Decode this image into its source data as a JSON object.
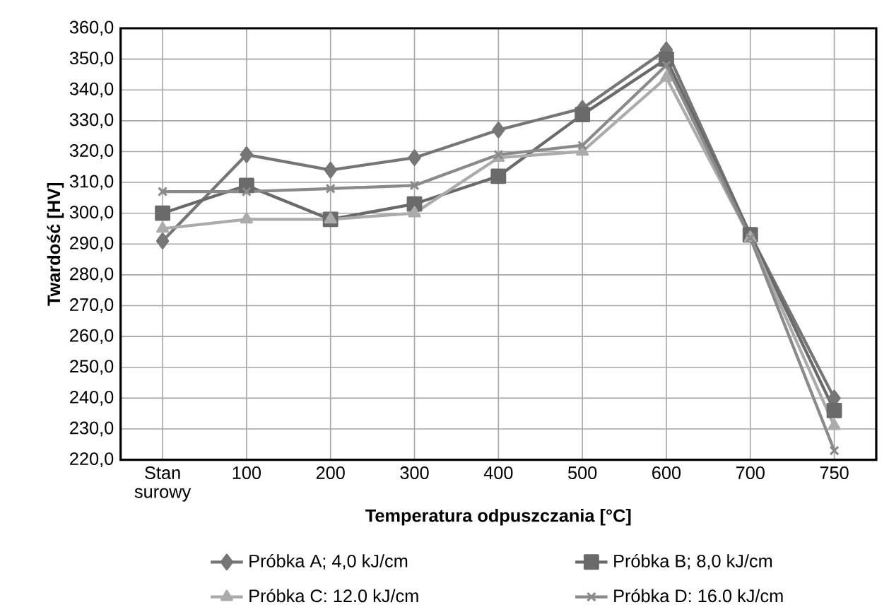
{
  "chart_data": {
    "type": "line",
    "xlabel": "Temperatura odpuszczania [°C]",
    "ylabel": "Twardość [HV]",
    "categories": [
      "Stan surowy",
      "100",
      "200",
      "300",
      "400",
      "500",
      "600",
      "700",
      "750"
    ],
    "ylim": [
      220,
      360
    ],
    "yticks": [
      {
        "value": 220,
        "label": "220,0"
      },
      {
        "value": 230,
        "label": "230,0"
      },
      {
        "value": 240,
        "label": "240,0"
      },
      {
        "value": 250,
        "label": "250,0"
      },
      {
        "value": 260,
        "label": "260,0"
      },
      {
        "value": 270,
        "label": "270,0"
      },
      {
        "value": 280,
        "label": "280,0"
      },
      {
        "value": 290,
        "label": "290,0"
      },
      {
        "value": 300,
        "label": "300,0"
      },
      {
        "value": 310,
        "label": "310,0"
      },
      {
        "value": 320,
        "label": "320,0"
      },
      {
        "value": 330,
        "label": "330,0"
      },
      {
        "value": 340,
        "label": "340,0"
      },
      {
        "value": 350,
        "label": "350,0"
      },
      {
        "value": 360,
        "label": "360,0"
      }
    ],
    "grid": true,
    "legend": "bottom",
    "series": [
      {
        "name": "Próbka A; 4,0 kJ/cm",
        "color": "#767676",
        "marker": "diamond",
        "values": [
          291,
          319,
          314,
          318,
          327,
          334,
          353,
          293,
          240
        ]
      },
      {
        "name": "Próbka B; 8,0 kJ/cm",
        "color": "#6a6a6a",
        "marker": "square",
        "values": [
          300,
          309,
          298,
          303,
          312,
          332,
          350,
          293,
          236
        ]
      },
      {
        "name": "Próbka C: 12.0 kJ/cm",
        "color": "#ababab",
        "marker": "triangle",
        "values": [
          295,
          298,
          298,
          300,
          318,
          320,
          344,
          292,
          231
        ]
      },
      {
        "name": "Próbka D: 16.0 kJ/cm",
        "color": "#8a8a8a",
        "marker": "cross",
        "values": [
          307,
          307,
          308,
          309,
          319,
          322,
          348,
          292,
          223
        ]
      }
    ]
  }
}
